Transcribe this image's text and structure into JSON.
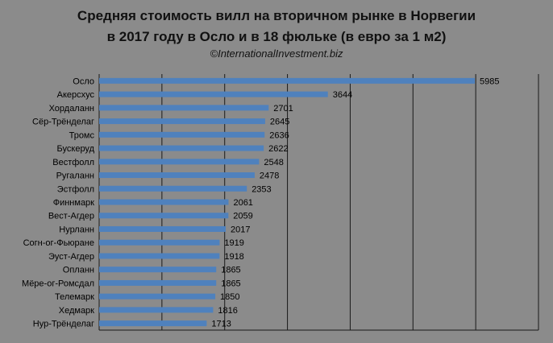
{
  "colors": {
    "background": "#8b8b8b",
    "plot_area": "#8b8b8b",
    "bar": "#4f81bd",
    "gridline": "#1a1a1a",
    "text": "#000000"
  },
  "chart_data": {
    "type": "bar",
    "orientation": "horizontal",
    "title_lines": [
      "Средняя стоимость вилл на вторичном рынке в Норвегии",
      "в 2017 году в Осло и в 18 фюльке (в евро за 1 м2)"
    ],
    "subtitle": "©InternationalInvestment.biz",
    "categories": [
      "Осло",
      "Акерсхус",
      "Хордаланн",
      "Сёр-Трёнделаг",
      "Тромс",
      "Бускеруд",
      "Вестфолл",
      "Ругаланн",
      "Эстфолл",
      "Финнмарк",
      "Вест-Агдер",
      "Нурланн",
      "Согн-ог-Фьюране",
      "Эуст-Агдер",
      "Опланн",
      "Мёре-ог-Ромсдал",
      "Телемарк",
      "Хедмарк",
      "Нур-Трёнделаг"
    ],
    "values": [
      5985,
      3644,
      2701,
      2645,
      2636,
      2622,
      2548,
      2478,
      2353,
      2061,
      2059,
      2017,
      1919,
      1918,
      1865,
      1865,
      1850,
      1816,
      1713
    ],
    "value_labels": [
      "5985",
      "3644",
      "2701",
      "2645",
      "2636",
      "2622",
      "2548",
      "2478",
      "2353",
      "2061",
      "2059",
      "2017",
      "1919",
      "1918",
      "1865",
      "1865",
      "1850",
      "1816",
      "1713"
    ],
    "xlim": [
      0,
      7000
    ],
    "x_grid_step": 1000,
    "x_tick_labels_shown": false,
    "grid": true,
    "legend": "none"
  }
}
